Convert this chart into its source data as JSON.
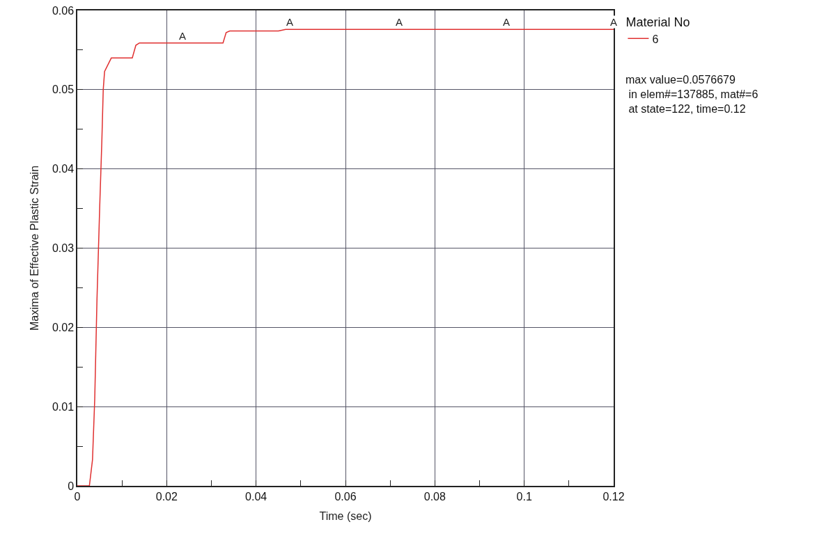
{
  "chart_data": {
    "type": "line",
    "xlabel": "Time (sec)",
    "ylabel": "Maxima of Effective Plastic Strain",
    "legend_title": "Material No",
    "x": [
      0,
      0.0027,
      0.0034,
      0.0039,
      0.0044,
      0.005,
      0.0055,
      0.0058,
      0.0061,
      0.0076,
      0.0123,
      0.0131,
      0.0139,
      0.0326,
      0.0333,
      0.0341,
      0.045,
      0.0466,
      0.12
    ],
    "series": [
      {
        "name": "6",
        "color": "#e03030",
        "values": [
          0,
          0,
          0.0033,
          0.011,
          0.0235,
          0.035,
          0.0437,
          0.05,
          0.0523,
          0.054,
          0.054,
          0.0556,
          0.0559,
          0.0559,
          0.0572,
          0.0574,
          0.0574,
          0.0576,
          0.0576
        ]
      }
    ],
    "xlim": [
      0,
      0.12
    ],
    "ylim": [
      0,
      0.06
    ],
    "xticks": [
      0,
      {
        "value": 0.01,
        "label": null
      },
      0.02,
      {
        "value": 0.03,
        "label": null
      },
      0.04,
      {
        "value": 0.05,
        "label": null
      },
      0.06,
      {
        "value": 0.07,
        "label": null
      },
      0.08,
      {
        "value": 0.09,
        "label": null
      },
      0.1,
      {
        "value": 0.11,
        "label": null
      },
      0.12
    ],
    "yticks": [
      0,
      {
        "value": 0.005,
        "label": null
      },
      0.01,
      {
        "value": 0.015,
        "label": null
      },
      0.02,
      {
        "value": 0.025,
        "label": null
      },
      0.03,
      {
        "value": 0.035,
        "label": null
      },
      0.04,
      {
        "value": 0.045,
        "label": null
      },
      0.05,
      {
        "value": 0.055,
        "label": null
      },
      0.06
    ],
    "grid": true,
    "legend": "top right",
    "line_style": "solid",
    "annotations": [
      {
        "text": "A",
        "x": 0.0235,
        "y": 0.0559
      },
      {
        "text": "A",
        "x": 0.0475,
        "y": 0.0576
      },
      {
        "text": "A",
        "x": 0.072,
        "y": 0.0576
      },
      {
        "text": "A",
        "x": 0.096,
        "y": 0.0576
      },
      {
        "text": "A",
        "x": 0.12,
        "y": 0.0576
      },
      "max value=0.0576679",
      " in elem#=137885, mat#=6",
      " at state=122, time=0.12"
    ]
  }
}
